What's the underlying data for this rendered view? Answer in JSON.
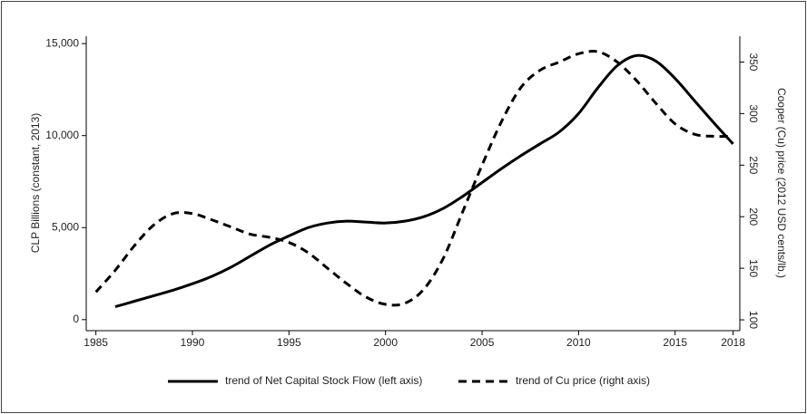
{
  "chart_data": {
    "type": "line",
    "ylabel": "CLP Billions (constant, 2013)",
    "y2label": "Cooper (Cu) price (2012 USD cents/lb.)",
    "xlim": [
      1984.5,
      2018.35
    ],
    "xticks": [
      1985,
      1990,
      1995,
      2000,
      2005,
      2010,
      2015,
      2018
    ],
    "ylim": [
      -600,
      15400
    ],
    "yticks": [
      0,
      {
        "value": 5000,
        "label": "5,000"
      },
      {
        "value": 10000,
        "label": "10,000"
      },
      {
        "value": 15000,
        "label": "15,000"
      }
    ],
    "y2lim": [
      89.5,
      375
    ],
    "y2ticks": [
      100,
      150,
      200,
      250,
      300,
      350
    ],
    "grid": false,
    "legend": "bottom",
    "series": [
      {
        "name": "trend of Net Capital Stock Flow (left axis)",
        "color": "#000000",
        "dash": "solid",
        "x": [
          1986,
          1987,
          1988,
          1989,
          1990,
          1991,
          1992,
          1993,
          1994,
          1995,
          1996,
          1997,
          1998,
          1999,
          2000,
          2001,
          2002,
          2003,
          2004,
          2005,
          2006,
          2007,
          2008,
          2009,
          2010,
          2011,
          2012,
          2013,
          2014,
          2015,
          2016,
          2017,
          2018
        ],
        "values": [
          700,
          1000,
          1300,
          1600,
          1950,
          2350,
          2850,
          3450,
          4050,
          4550,
          5000,
          5250,
          5350,
          5300,
          5250,
          5350,
          5600,
          6050,
          6700,
          7450,
          8200,
          8900,
          9550,
          10200,
          11200,
          12600,
          13800,
          14350,
          14050,
          13100,
          11900,
          10700,
          9550
        ]
      },
      {
        "name": "trend of Cu price (right axis)",
        "color": "#000000",
        "dash": "dashed",
        "axis": "y2",
        "x": [
          1985,
          1986,
          1987,
          1988,
          1989,
          1990,
          1991,
          1992,
          1993,
          1994,
          1995,
          1996,
          1997,
          1998,
          1999,
          2000,
          2001,
          2002,
          2003,
          2004,
          2005,
          2006,
          2007,
          2008,
          2009,
          2010,
          2011,
          2012,
          2013,
          2014,
          2015,
          2016,
          2017,
          2018
        ],
        "values": [
          127,
          148,
          172,
          192,
          203,
          203,
          197,
          190,
          183,
          180,
          175,
          165,
          150,
          135,
          122,
          115,
          116,
          130,
          160,
          205,
          250,
          292,
          325,
          342,
          350,
          358,
          360,
          350,
          332,
          310,
          290,
          280,
          278,
          278
        ]
      }
    ]
  }
}
